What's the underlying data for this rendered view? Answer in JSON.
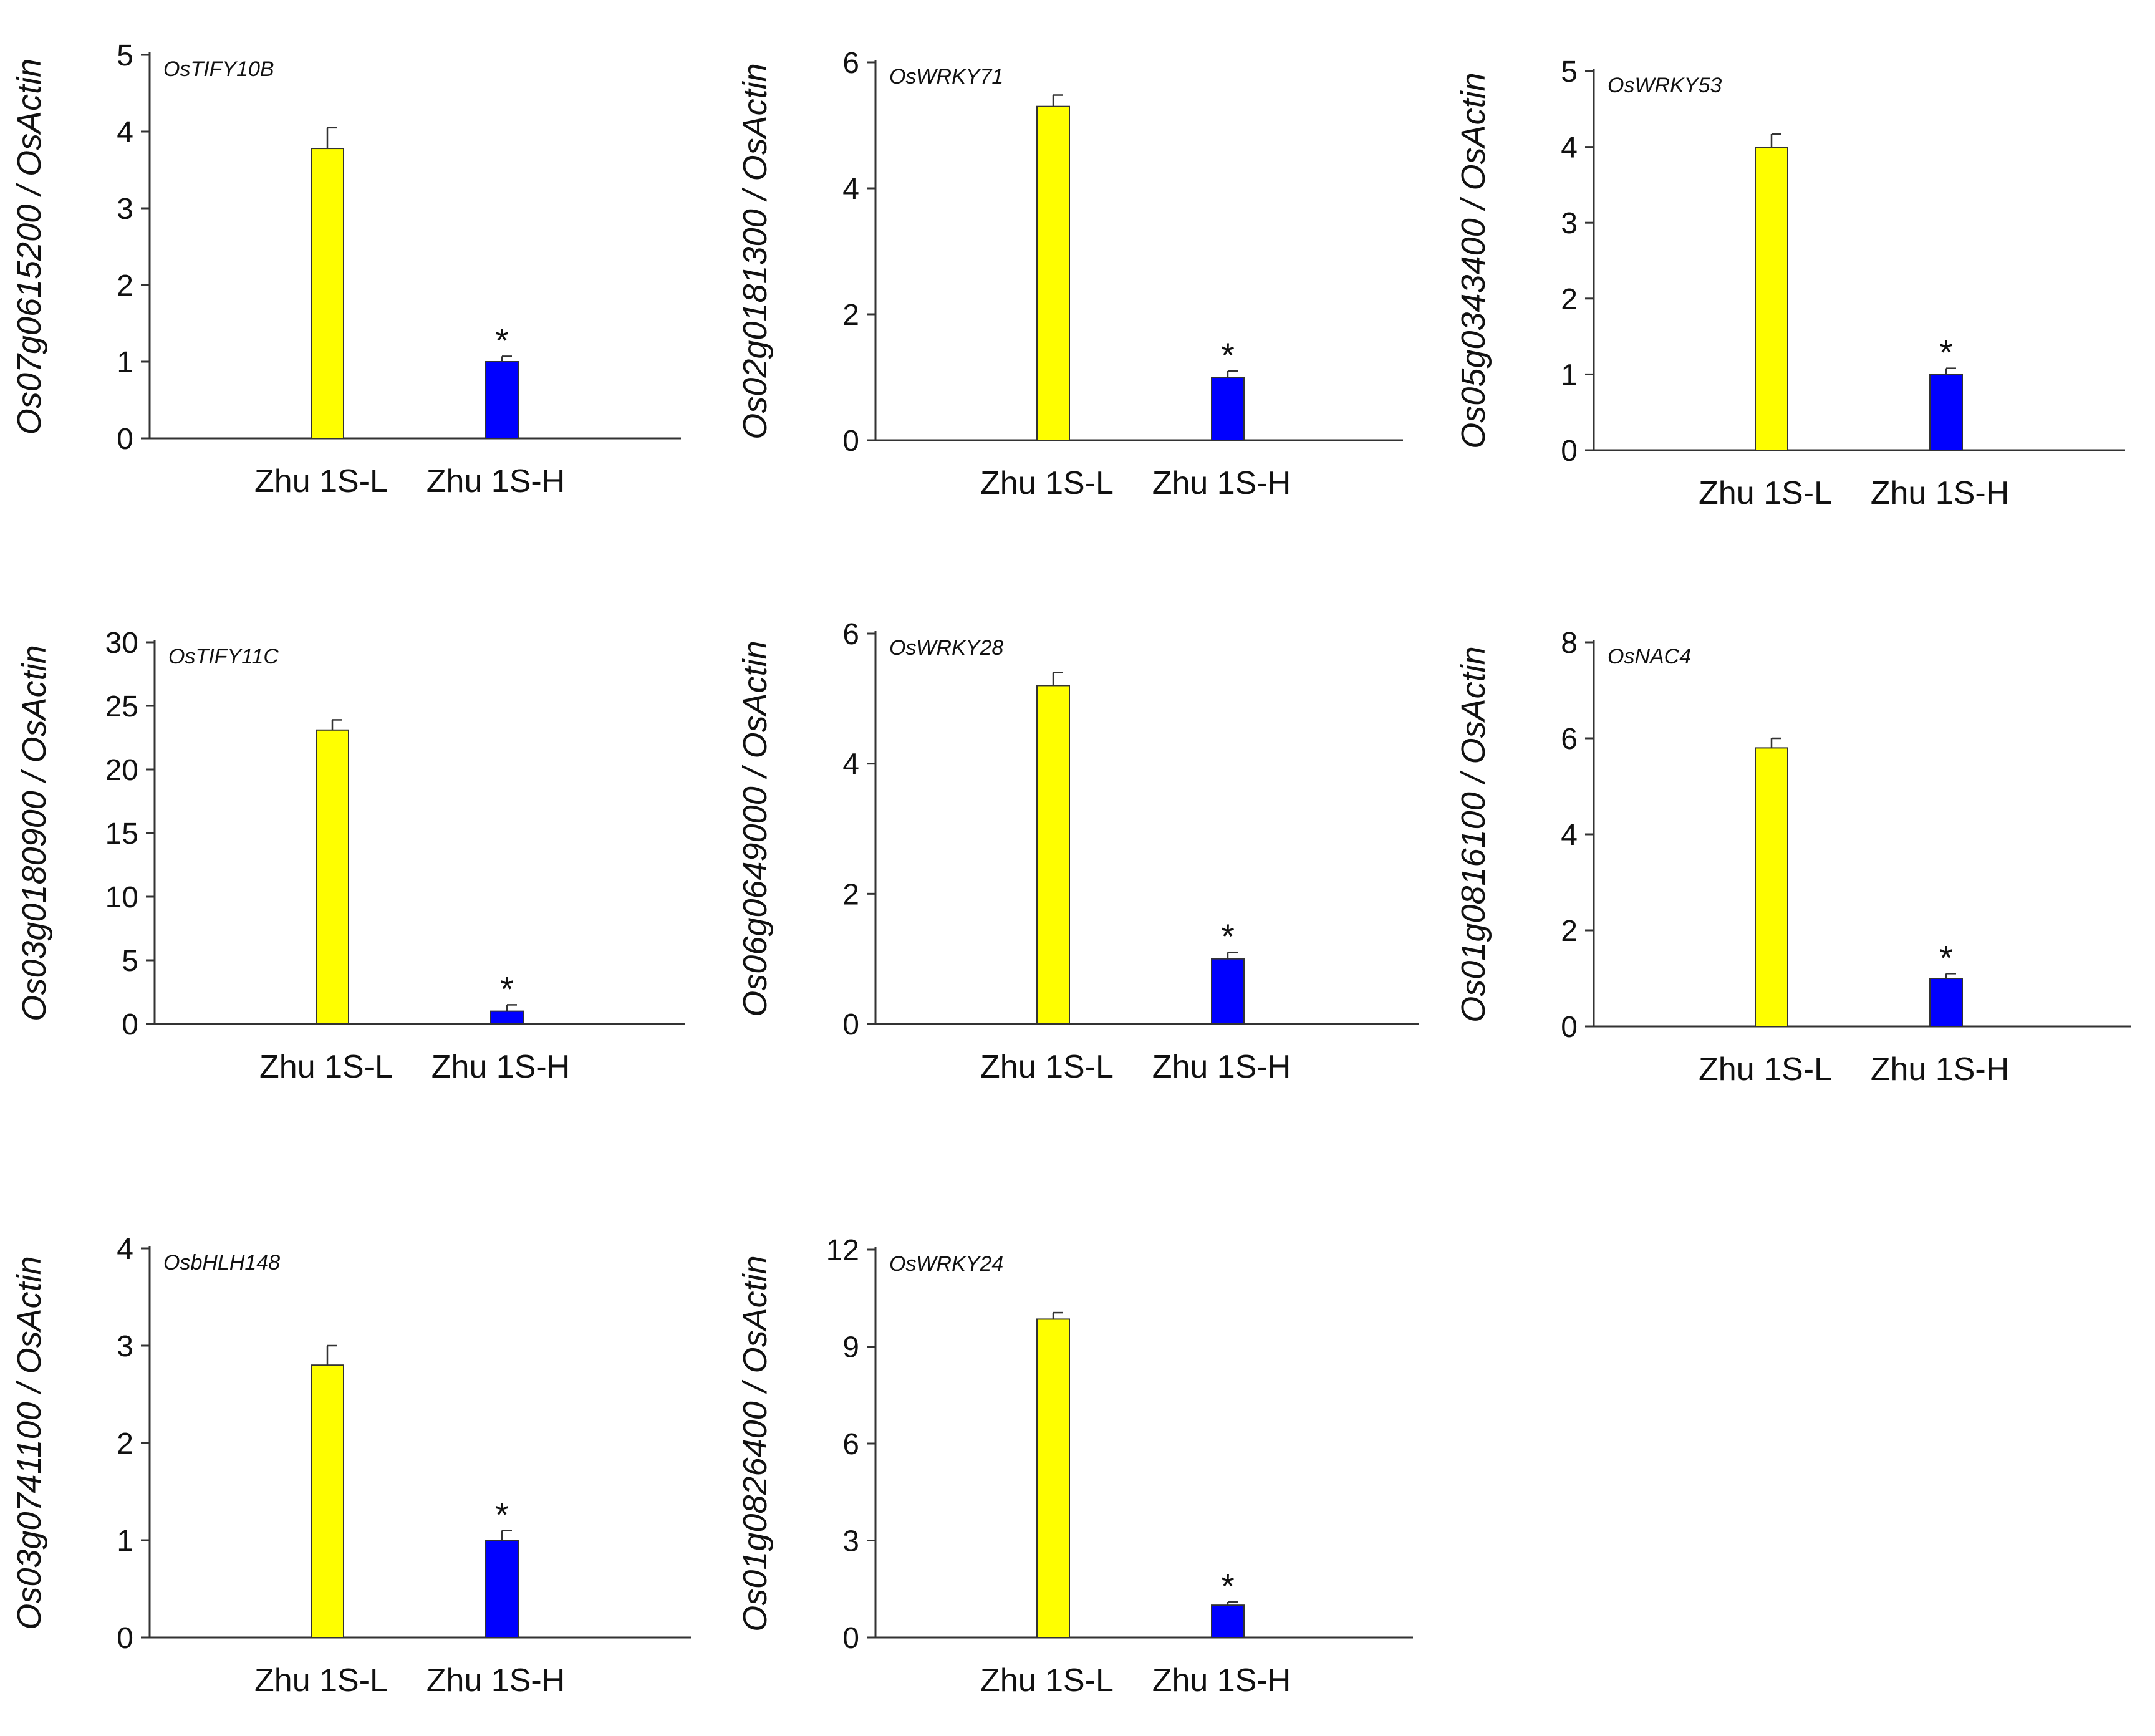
{
  "chart_data": [
    {
      "type": "bar",
      "title": "OsTIFY10B",
      "ylabel": "Os07g0615200 / OsActin",
      "categories": [
        "Zhu 1S-L",
        "Zhu 1S-H"
      ],
      "values": [
        3.78,
        1.0
      ],
      "errors": [
        0.27,
        0.07
      ],
      "significance": [
        "",
        "*"
      ],
      "colors": [
        "#ffff00",
        "#0000ff"
      ],
      "ylim": [
        0,
        5
      ],
      "yticks": [
        0,
        1,
        2,
        3,
        4,
        5
      ]
    },
    {
      "type": "bar",
      "title": "OsWRKY71",
      "ylabel": "Os02g0181300 / OsActin",
      "categories": [
        "Zhu 1S-L",
        "Zhu 1S-H"
      ],
      "values": [
        5.3,
        1.0
      ],
      "errors": [
        0.18,
        0.1
      ],
      "significance": [
        "",
        "*"
      ],
      "colors": [
        "#ffff00",
        "#0000ff"
      ],
      "ylim": [
        0,
        6
      ],
      "yticks": [
        0,
        2,
        4,
        6
      ]
    },
    {
      "type": "bar",
      "title": "OsWRKY53",
      "ylabel": "Os05g0343400 / OsActin",
      "categories": [
        "Zhu 1S-L",
        "Zhu 1S-H"
      ],
      "values": [
        3.99,
        1.0
      ],
      "errors": [
        0.18,
        0.08
      ],
      "significance": [
        "",
        "*"
      ],
      "colors": [
        "#ffff00",
        "#0000ff"
      ],
      "ylim": [
        0,
        5
      ],
      "yticks": [
        0,
        1,
        2,
        3,
        4,
        5
      ]
    },
    {
      "type": "bar",
      "title": "OsTIFY11C",
      "ylabel": "Os03g0180900 / OsActin",
      "categories": [
        "Zhu 1S-L",
        "Zhu 1S-H"
      ],
      "values": [
        23.1,
        1.0
      ],
      "errors": [
        0.8,
        0.5
      ],
      "significance": [
        "",
        "*"
      ],
      "colors": [
        "#ffff00",
        "#0000ff"
      ],
      "ylim": [
        0,
        30
      ],
      "yticks": [
        0,
        5,
        10,
        15,
        20,
        25,
        30
      ]
    },
    {
      "type": "bar",
      "title": "OsWRKY28",
      "ylabel": "Os06g0649000 / OsActin",
      "categories": [
        "Zhu 1S-L",
        "Zhu 1S-H"
      ],
      "values": [
        5.2,
        1.0
      ],
      "errors": [
        0.2,
        0.1
      ],
      "significance": [
        "",
        "*"
      ],
      "colors": [
        "#ffff00",
        "#0000ff"
      ],
      "ylim": [
        0,
        6
      ],
      "yticks": [
        0,
        2,
        4,
        6
      ]
    },
    {
      "type": "bar",
      "title": "OsNAC4",
      "ylabel": "Os01g0816100 / OsActin",
      "categories": [
        "Zhu 1S-L",
        "Zhu 1S-H"
      ],
      "values": [
        5.8,
        1.0
      ],
      "errors": [
        0.2,
        0.1
      ],
      "significance": [
        "",
        "*"
      ],
      "colors": [
        "#ffff00",
        "#0000ff"
      ],
      "ylim": [
        0,
        8
      ],
      "yticks": [
        0,
        2,
        4,
        6,
        8
      ]
    },
    {
      "type": "bar",
      "title": "OsbHLH148",
      "ylabel": "Os03g0741100 / OsActin",
      "categories": [
        "Zhu 1S-L",
        "Zhu 1S-H"
      ],
      "values": [
        2.8,
        1.0
      ],
      "errors": [
        0.2,
        0.1
      ],
      "significance": [
        "",
        "*"
      ],
      "colors": [
        "#ffff00",
        "#0000ff"
      ],
      "ylim": [
        0,
        4
      ],
      "yticks": [
        0,
        1,
        2,
        3,
        4
      ]
    },
    {
      "type": "bar",
      "title": "OsWRKY24",
      "ylabel": "Os01g0826400 / OsActin",
      "categories": [
        "Zhu 1S-L",
        "Zhu 1S-H"
      ],
      "values": [
        9.85,
        1.0
      ],
      "errors": [
        0.2,
        0.1
      ],
      "significance": [
        "",
        "*"
      ],
      "colors": [
        "#ffff00",
        "#0000ff"
      ],
      "ylim": [
        0,
        12
      ],
      "yticks": [
        0,
        3,
        6,
        9,
        12
      ]
    }
  ]
}
